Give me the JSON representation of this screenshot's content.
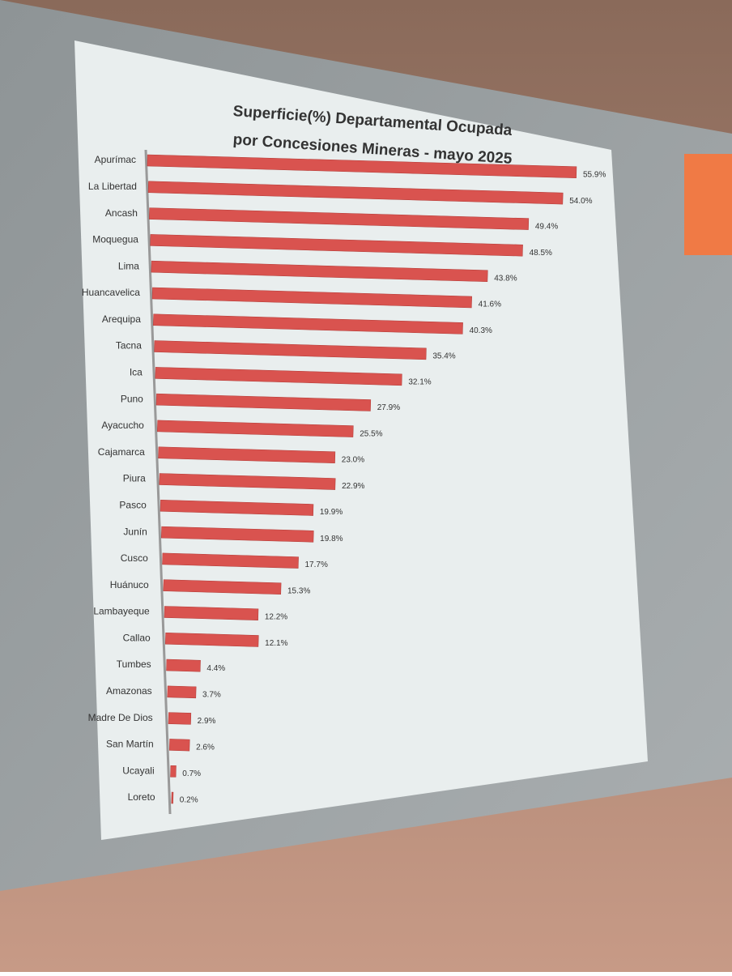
{
  "chart_data": {
    "type": "bar",
    "orientation": "horizontal",
    "title": "Superficie(%) Departamental Ocupada",
    "subtitle": "por Concesiones Mineras - mayo 2025",
    "categories": [
      "Apurímac",
      "La Libertad",
      "Ancash",
      "Moquegua",
      "Lima",
      "Huancavelica",
      "Arequipa",
      "Tacna",
      "Ica",
      "Puno",
      "Ayacucho",
      "Cajamarca",
      "Piura",
      "Pasco",
      "Junín",
      "Cusco",
      "Huánuco",
      "Lambayeque",
      "Callao",
      "Tumbes",
      "Amazonas",
      "Madre De Dios",
      "San Martín",
      "Ucayali",
      "Loreto"
    ],
    "values": [
      55.9,
      54.0,
      49.4,
      48.5,
      43.8,
      41.6,
      40.3,
      35.4,
      32.1,
      27.9,
      25.5,
      23.0,
      22.9,
      19.9,
      19.8,
      17.7,
      15.3,
      12.2,
      12.1,
      4.4,
      3.7,
      2.9,
      2.6,
      0.7,
      0.2
    ],
    "value_labels": [
      "55.9%",
      "54.0%",
      "49.4%",
      "48.5%",
      "43.8%",
      "41.6%",
      "40.3%",
      "35.4%",
      "32.1%",
      "27.9%",
      "25.5%",
      "23.0%",
      "22.9%",
      "19.9%",
      "19.8%",
      "17.7%",
      "15.3%",
      "12.2%",
      "12.1%",
      "4.4%",
      "3.7%",
      "2.9%",
      "2.6%",
      "0.7%",
      "0.2%"
    ],
    "color": "#d9534f"
  }
}
